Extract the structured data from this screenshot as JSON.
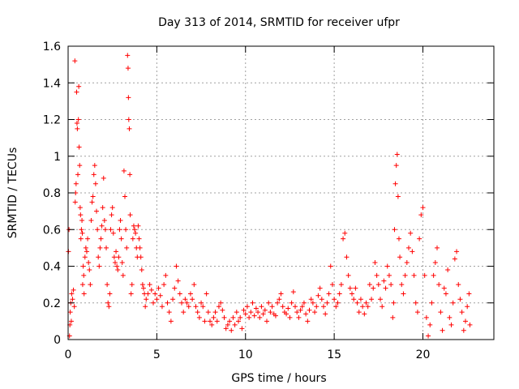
{
  "chart_data": {
    "type": "scatter",
    "title": "Day 313 of 2014, SRMTID for receiver ufpr",
    "xlabel": "GPS time / hours",
    "ylabel": "SRMTID / TECUs",
    "xlim": [
      0,
      24
    ],
    "ylim": [
      0,
      1.6
    ],
    "xticks": [
      0,
      5,
      10,
      15,
      20
    ],
    "xtick_labels": [
      "0",
      "5",
      "10",
      "15",
      "20"
    ],
    "yticks": [
      0,
      0.2,
      0.4,
      0.6,
      0.8,
      1.0,
      1.2,
      1.4,
      1.6
    ],
    "ytick_labels": [
      "0",
      "0.2",
      "0.4",
      "0.6",
      "0.8",
      "1",
      "1.2",
      "1.4",
      "1.6"
    ],
    "grid": true,
    "marker": "plus",
    "color": "#ff0000",
    "series": [
      {
        "name": "SRMTID",
        "points": [
          [
            0.02,
            0.48
          ],
          [
            0.05,
            0.6
          ],
          [
            0.08,
            0.02
          ],
          [
            0.1,
            0.08
          ],
          [
            0.12,
            0.15
          ],
          [
            0.15,
            0.2
          ],
          [
            0.18,
            0.1
          ],
          [
            0.2,
            0.25
          ],
          [
            0.25,
            0.22
          ],
          [
            0.3,
            0.27
          ],
          [
            0.35,
            0.18
          ],
          [
            0.38,
            1.52
          ],
          [
            0.4,
            0.75
          ],
          [
            0.42,
            0.8
          ],
          [
            0.45,
            0.85
          ],
          [
            0.48,
            1.35
          ],
          [
            0.5,
            1.18
          ],
          [
            0.52,
            1.15
          ],
          [
            0.55,
            0.9
          ],
          [
            0.58,
            1.2
          ],
          [
            0.6,
            1.38
          ],
          [
            0.62,
            1.05
          ],
          [
            0.65,
            0.95
          ],
          [
            0.68,
            0.72
          ],
          [
            0.7,
            0.68
          ],
          [
            0.72,
            0.55
          ],
          [
            0.75,
            0.6
          ],
          [
            0.78,
            0.65
          ],
          [
            0.8,
            0.58
          ],
          [
            0.82,
            0.3
          ],
          [
            0.85,
            0.4
          ],
          [
            0.88,
            0.35
          ],
          [
            0.9,
            0.25
          ],
          [
            0.95,
            0.45
          ],
          [
            1.0,
            0.5
          ],
          [
            1.05,
            0.48
          ],
          [
            1.1,
            0.55
          ],
          [
            1.15,
            0.42
          ],
          [
            1.2,
            0.38
          ],
          [
            1.25,
            0.3
          ],
          [
            1.3,
            0.65
          ],
          [
            1.35,
            0.75
          ],
          [
            1.4,
            0.78
          ],
          [
            1.45,
            0.9
          ],
          [
            1.5,
            0.95
          ],
          [
            1.55,
            0.85
          ],
          [
            1.6,
            0.7
          ],
          [
            1.65,
            0.6
          ],
          [
            1.7,
            0.45
          ],
          [
            1.75,
            0.4
          ],
          [
            1.8,
            0.5
          ],
          [
            1.85,
            0.55
          ],
          [
            1.9,
            0.62
          ],
          [
            1.95,
            0.72
          ],
          [
            2.0,
            0.88
          ],
          [
            2.05,
            0.65
          ],
          [
            2.1,
            0.6
          ],
          [
            2.15,
            0.5
          ],
          [
            2.2,
            0.3
          ],
          [
            2.25,
            0.2
          ],
          [
            2.3,
            0.18
          ],
          [
            2.35,
            0.25
          ],
          [
            2.4,
            0.6
          ],
          [
            2.45,
            0.68
          ],
          [
            2.5,
            0.72
          ],
          [
            2.55,
            0.58
          ],
          [
            2.6,
            0.45
          ],
          [
            2.65,
            0.42
          ],
          [
            2.7,
            0.48
          ],
          [
            2.75,
            0.4
          ],
          [
            2.8,
            0.38
          ],
          [
            2.85,
            0.45
          ],
          [
            2.9,
            0.6
          ],
          [
            2.95,
            0.65
          ],
          [
            3.0,
            0.55
          ],
          [
            3.05,
            0.42
          ],
          [
            3.1,
            0.35
          ],
          [
            3.15,
            0.92
          ],
          [
            3.2,
            0.78
          ],
          [
            3.25,
            0.6
          ],
          [
            3.3,
            0.5
          ],
          [
            3.35,
            1.55
          ],
          [
            3.38,
            1.48
          ],
          [
            3.4,
            1.32
          ],
          [
            3.42,
            1.2
          ],
          [
            3.45,
            1.15
          ],
          [
            3.48,
            0.9
          ],
          [
            3.5,
            0.68
          ],
          [
            3.55,
            0.25
          ],
          [
            3.6,
            0.3
          ],
          [
            3.65,
            0.55
          ],
          [
            3.7,
            0.62
          ],
          [
            3.75,
            0.6
          ],
          [
            3.8,
            0.58
          ],
          [
            3.85,
            0.5
          ],
          [
            3.9,
            0.45
          ],
          [
            3.95,
            0.62
          ],
          [
            4.0,
            0.55
          ],
          [
            4.05,
            0.5
          ],
          [
            4.1,
            0.45
          ],
          [
            4.15,
            0.38
          ],
          [
            4.2,
            0.3
          ],
          [
            4.25,
            0.28
          ],
          [
            4.3,
            0.25
          ],
          [
            4.35,
            0.18
          ],
          [
            4.4,
            0.22
          ],
          [
            4.5,
            0.25
          ],
          [
            4.6,
            0.3
          ],
          [
            4.7,
            0.27
          ],
          [
            4.8,
            0.2
          ],
          [
            4.9,
            0.25
          ],
          [
            5.0,
            0.22
          ],
          [
            5.1,
            0.28
          ],
          [
            5.2,
            0.24
          ],
          [
            5.3,
            0.18
          ],
          [
            5.4,
            0.3
          ],
          [
            5.5,
            0.35
          ],
          [
            5.6,
            0.2
          ],
          [
            5.7,
            0.15
          ],
          [
            5.8,
            0.1
          ],
          [
            5.9,
            0.22
          ],
          [
            6.0,
            0.28
          ],
          [
            6.1,
            0.4
          ],
          [
            6.2,
            0.32
          ],
          [
            6.3,
            0.25
          ],
          [
            6.4,
            0.2
          ],
          [
            6.5,
            0.15
          ],
          [
            6.6,
            0.22
          ],
          [
            6.7,
            0.2
          ],
          [
            6.8,
            0.18
          ],
          [
            6.9,
            0.25
          ],
          [
            7.0,
            0.22
          ],
          [
            7.1,
            0.3
          ],
          [
            7.2,
            0.18
          ],
          [
            7.3,
            0.15
          ],
          [
            7.4,
            0.12
          ],
          [
            7.5,
            0.2
          ],
          [
            7.6,
            0.18
          ],
          [
            7.7,
            0.1
          ],
          [
            7.8,
            0.25
          ],
          [
            7.9,
            0.15
          ],
          [
            8.0,
            0.1
          ],
          [
            8.1,
            0.08
          ],
          [
            8.2,
            0.12
          ],
          [
            8.3,
            0.15
          ],
          [
            8.4,
            0.1
          ],
          [
            8.5,
            0.18
          ],
          [
            8.6,
            0.2
          ],
          [
            8.7,
            0.16
          ],
          [
            8.8,
            0.12
          ],
          [
            8.9,
            0.06
          ],
          [
            9.0,
            0.08
          ],
          [
            9.1,
            0.1
          ],
          [
            9.2,
            0.05
          ],
          [
            9.3,
            0.12
          ],
          [
            9.4,
            0.08
          ],
          [
            9.5,
            0.15
          ],
          [
            9.6,
            0.1
          ],
          [
            9.7,
            0.12
          ],
          [
            9.8,
            0.06
          ],
          [
            9.9,
            0.16
          ],
          [
            10.0,
            0.14
          ],
          [
            10.1,
            0.18
          ],
          [
            10.2,
            0.12
          ],
          [
            10.3,
            0.15
          ],
          [
            10.4,
            0.2
          ],
          [
            10.5,
            0.13
          ],
          [
            10.6,
            0.17
          ],
          [
            10.7,
            0.15
          ],
          [
            10.8,
            0.12
          ],
          [
            10.9,
            0.18
          ],
          [
            11.0,
            0.14
          ],
          [
            11.1,
            0.16
          ],
          [
            11.2,
            0.1
          ],
          [
            11.3,
            0.2
          ],
          [
            11.4,
            0.15
          ],
          [
            11.5,
            0.18
          ],
          [
            11.6,
            0.14
          ],
          [
            11.7,
            0.13
          ],
          [
            11.8,
            0.2
          ],
          [
            11.9,
            0.22
          ],
          [
            12.0,
            0.25
          ],
          [
            12.1,
            0.18
          ],
          [
            12.2,
            0.15
          ],
          [
            12.3,
            0.14
          ],
          [
            12.4,
            0.17
          ],
          [
            12.5,
            0.12
          ],
          [
            12.6,
            0.2
          ],
          [
            12.7,
            0.26
          ],
          [
            12.8,
            0.18
          ],
          [
            12.9,
            0.15
          ],
          [
            13.0,
            0.12
          ],
          [
            13.1,
            0.16
          ],
          [
            13.2,
            0.18
          ],
          [
            13.3,
            0.2
          ],
          [
            13.4,
            0.14
          ],
          [
            13.5,
            0.1
          ],
          [
            13.6,
            0.16
          ],
          [
            13.7,
            0.22
          ],
          [
            13.8,
            0.2
          ],
          [
            13.9,
            0.15
          ],
          [
            14.0,
            0.18
          ],
          [
            14.1,
            0.24
          ],
          [
            14.2,
            0.28
          ],
          [
            14.3,
            0.22
          ],
          [
            14.4,
            0.18
          ],
          [
            14.5,
            0.14
          ],
          [
            14.6,
            0.2
          ],
          [
            14.7,
            0.25
          ],
          [
            14.8,
            0.4
          ],
          [
            14.9,
            0.3
          ],
          [
            15.0,
            0.22
          ],
          [
            15.1,
            0.18
          ],
          [
            15.2,
            0.2
          ],
          [
            15.3,
            0.25
          ],
          [
            15.4,
            0.3
          ],
          [
            15.5,
            0.55
          ],
          [
            15.6,
            0.58
          ],
          [
            15.7,
            0.45
          ],
          [
            15.8,
            0.35
          ],
          [
            15.9,
            0.28
          ],
          [
            16.0,
            0.25
          ],
          [
            16.1,
            0.22
          ],
          [
            16.2,
            0.28
          ],
          [
            16.3,
            0.2
          ],
          [
            16.4,
            0.15
          ],
          [
            16.5,
            0.22
          ],
          [
            16.6,
            0.18
          ],
          [
            16.7,
            0.14
          ],
          [
            16.8,
            0.2
          ],
          [
            16.9,
            0.18
          ],
          [
            17.0,
            0.3
          ],
          [
            17.1,
            0.22
          ],
          [
            17.2,
            0.28
          ],
          [
            17.3,
            0.42
          ],
          [
            17.4,
            0.35
          ],
          [
            17.5,
            0.3
          ],
          [
            17.6,
            0.22
          ],
          [
            17.7,
            0.18
          ],
          [
            17.8,
            0.32
          ],
          [
            17.9,
            0.28
          ],
          [
            18.0,
            0.4
          ],
          [
            18.1,
            0.35
          ],
          [
            18.2,
            0.3
          ],
          [
            18.3,
            0.12
          ],
          [
            18.35,
            0.2
          ],
          [
            18.4,
            0.6
          ],
          [
            18.45,
            0.85
          ],
          [
            18.5,
            0.95
          ],
          [
            18.55,
            1.01
          ],
          [
            18.6,
            0.78
          ],
          [
            18.65,
            0.55
          ],
          [
            18.7,
            0.45
          ],
          [
            18.8,
            0.3
          ],
          [
            18.9,
            0.25
          ],
          [
            19.0,
            0.35
          ],
          [
            19.1,
            0.42
          ],
          [
            19.2,
            0.5
          ],
          [
            19.3,
            0.58
          ],
          [
            19.4,
            0.48
          ],
          [
            19.5,
            0.35
          ],
          [
            19.6,
            0.2
          ],
          [
            19.7,
            0.15
          ],
          [
            19.8,
            0.55
          ],
          [
            19.9,
            0.68
          ],
          [
            20.0,
            0.72
          ],
          [
            20.1,
            0.35
          ],
          [
            20.2,
            0.12
          ],
          [
            20.3,
            0.02
          ],
          [
            20.4,
            0.08
          ],
          [
            20.5,
            0.2
          ],
          [
            20.6,
            0.35
          ],
          [
            20.7,
            0.42
          ],
          [
            20.8,
            0.5
          ],
          [
            20.9,
            0.3
          ],
          [
            21.0,
            0.15
          ],
          [
            21.1,
            0.05
          ],
          [
            21.2,
            0.28
          ],
          [
            21.3,
            0.25
          ],
          [
            21.4,
            0.38
          ],
          [
            21.5,
            0.12
          ],
          [
            21.6,
            0.08
          ],
          [
            21.7,
            0.2
          ],
          [
            21.8,
            0.44
          ],
          [
            21.9,
            0.48
          ],
          [
            22.0,
            0.3
          ],
          [
            22.1,
            0.22
          ],
          [
            22.2,
            0.15
          ],
          [
            22.3,
            0.05
          ],
          [
            22.4,
            0.1
          ],
          [
            22.5,
            0.18
          ],
          [
            22.6,
            0.25
          ],
          [
            22.65,
            0.08
          ]
        ]
      }
    ]
  }
}
